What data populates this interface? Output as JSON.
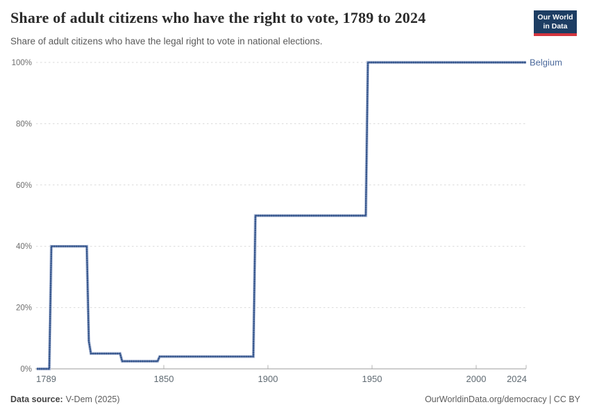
{
  "header": {
    "title": "Share of adult citizens who have the right to vote, 1789 to 2024",
    "subtitle": "Share of adult citizens who have the legal right to vote in national elections."
  },
  "logo": {
    "line1": "Our World",
    "line2": "in Data"
  },
  "footer": {
    "source_label": "Data source:",
    "source_value": "V-Dem (2025)",
    "right": "OurWorldinData.org/democracy | CC BY"
  },
  "colors": {
    "line": "#4c6a9c",
    "line_halo": "#c3cde2",
    "line_dot": "#2f4f87",
    "entity_label": "#4c6a9c",
    "grid": "#d9d9d9",
    "axis_baseline": "#9c9c9c",
    "tick_mark": "#b3b3b3",
    "logo_bg": "#1d3d63",
    "logo_accent": "#d4353e"
  },
  "chart_data": {
    "type": "line",
    "title": "Share of adult citizens who have the right to vote, 1789 to 2024",
    "subtitle": "Share of adult citizens who have the legal right to vote in national elections.",
    "xlabel": "",
    "ylabel": "",
    "xlim": [
      1789,
      2024
    ],
    "ylim": [
      0,
      100
    ],
    "grid": "horizontal-dashed",
    "legend_position": "line-end-label",
    "x_ticks": [
      {
        "year": 1789,
        "label": "1789"
      },
      {
        "year": 1850,
        "label": "1850"
      },
      {
        "year": 1900,
        "label": "1900"
      },
      {
        "year": 1950,
        "label": "1950"
      },
      {
        "year": 2000,
        "label": "2000"
      },
      {
        "year": 2024,
        "label": "2024"
      }
    ],
    "y_ticks": [
      {
        "value": 0,
        "label": "0%"
      },
      {
        "value": 20,
        "label": "20%"
      },
      {
        "value": 40,
        "label": "40%"
      },
      {
        "value": 60,
        "label": "60%"
      },
      {
        "value": 80,
        "label": "80%"
      },
      {
        "value": 100,
        "label": "100%"
      }
    ],
    "series": [
      {
        "name": "Belgium",
        "color": "#4c6a9c",
        "points": [
          [
            1789,
            0
          ],
          [
            1795,
            0
          ],
          [
            1796,
            40
          ],
          [
            1813,
            40
          ],
          [
            1814,
            9
          ],
          [
            1815,
            5
          ],
          [
            1829,
            5
          ],
          [
            1830,
            2.5
          ],
          [
            1847,
            2.5
          ],
          [
            1848,
            4
          ],
          [
            1893,
            4
          ],
          [
            1894,
            50
          ],
          [
            1947,
            50
          ],
          [
            1948,
            100
          ],
          [
            2024,
            100
          ]
        ]
      }
    ]
  }
}
